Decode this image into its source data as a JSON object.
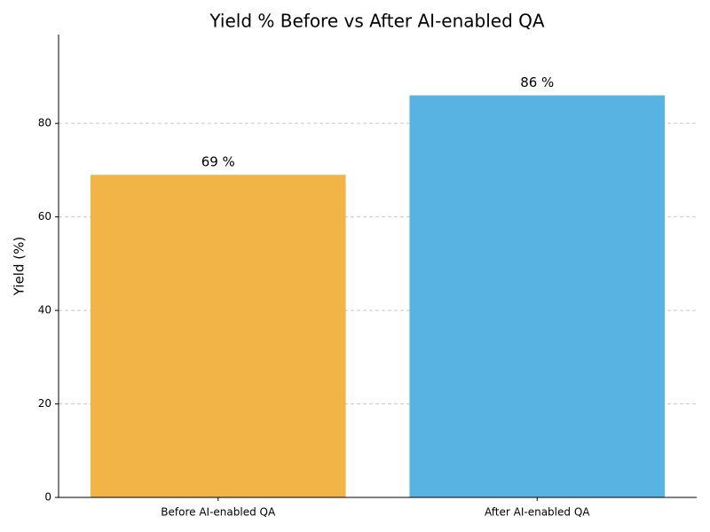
{
  "chart_data": {
    "type": "bar",
    "title": "Yield % Before vs After AI-enabled QA",
    "ylabel": "Yield (%)",
    "categories": [
      "Before AI-enabled QA",
      "After AI-enabled QA"
    ],
    "values": [
      69,
      86
    ],
    "value_labels": [
      "69 %",
      "86 %"
    ],
    "colors": [
      "#f2b447",
      "#58b2e2"
    ],
    "ylim": [
      0,
      99
    ],
    "yticks": [
      0,
      20,
      40,
      60,
      80
    ],
    "grid": true
  }
}
